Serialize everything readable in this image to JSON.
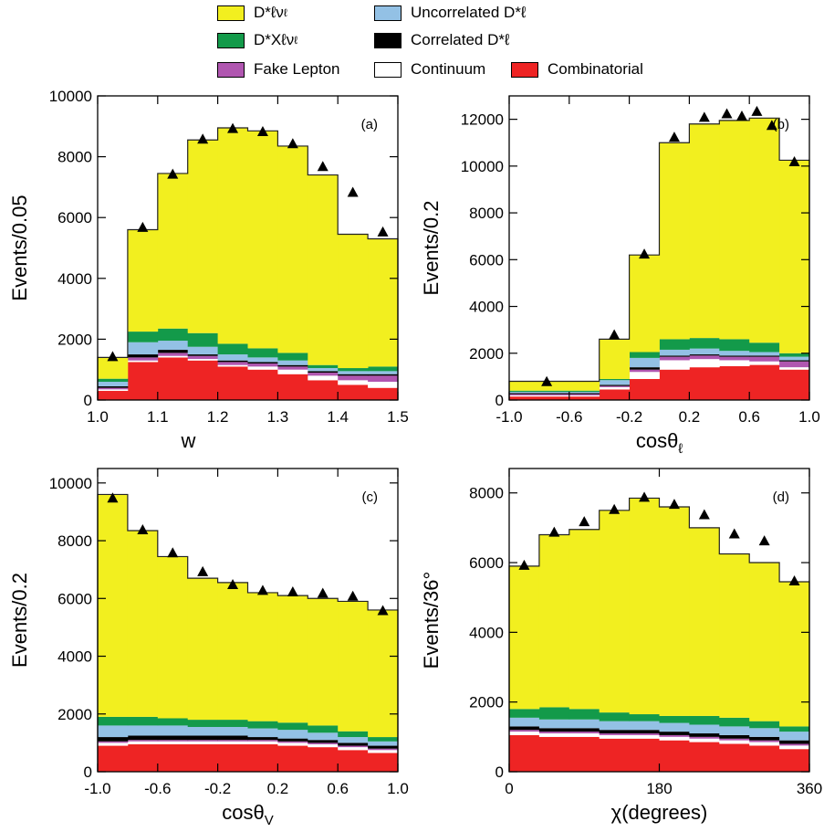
{
  "legend": [
    {
      "label": "D*ℓν",
      "sub": "ℓ",
      "color": "#f2ef1f"
    },
    {
      "label": "Uncorrelated D*ℓ",
      "color": "#93c1e5"
    },
    {
      "label": "D*Xℓν",
      "sub": "ℓ",
      "color": "#139a4a"
    },
    {
      "label": "Correlated D*ℓ",
      "color": "#000000"
    },
    {
      "label": "Fake Lepton",
      "color": "#b056b0"
    },
    {
      "label": "Continuum",
      "color": "#ffffff"
    },
    {
      "label": "Combinatorial",
      "color": "#ee2424"
    }
  ],
  "chart_data": [
    {
      "type": "area",
      "panel": "(a)",
      "xlabel": "w",
      "ylabel": "Events/0.05",
      "xlim": [
        1.0,
        1.5
      ],
      "ylim": [
        0,
        10000
      ],
      "xticks": [
        "1.0",
        "1.1",
        "1.2",
        "1.3",
        "1.4",
        "1.5"
      ],
      "yticks": [
        "0",
        "2000",
        "4000",
        "6000",
        "8000",
        "10000"
      ],
      "bin_edges": [
        1.0,
        1.05,
        1.1,
        1.15,
        1.2,
        1.25,
        1.3,
        1.35,
        1.4,
        1.45,
        1.5
      ],
      "stack": [
        {
          "name": "Combinatorial",
          "values": [
            300,
            1250,
            1400,
            1300,
            1100,
            1000,
            850,
            650,
            500,
            400
          ]
        },
        {
          "name": "Continuum",
          "values": [
            50,
            50,
            50,
            50,
            50,
            100,
            150,
            150,
            150,
            200
          ]
        },
        {
          "name": "Fake Lepton",
          "values": [
            50,
            100,
            100,
            100,
            100,
            100,
            100,
            100,
            150,
            200
          ]
        },
        {
          "name": "Correlated D*ℓ",
          "values": [
            50,
            100,
            100,
            50,
            50,
            50,
            50,
            50,
            50,
            50
          ]
        },
        {
          "name": "Uncorrelated D*ℓ",
          "values": [
            150,
            400,
            300,
            250,
            200,
            150,
            150,
            100,
            100,
            100
          ]
        },
        {
          "name": "D*Xℓνℓ",
          "values": [
            100,
            350,
            400,
            450,
            350,
            300,
            250,
            100,
            100,
            150
          ]
        },
        {
          "name": "D*ℓνℓ",
          "values": [
            700,
            3350,
            5100,
            6350,
            7100,
            7150,
            6800,
            6250,
            4400,
            4200
          ]
        }
      ],
      "points": {
        "x": [
          1.025,
          1.075,
          1.125,
          1.175,
          1.225,
          1.275,
          1.325,
          1.375,
          1.425,
          1.475
        ],
        "y": [
          1400,
          5650,
          7400,
          8550,
          8900,
          8800,
          8400,
          7650,
          6800,
          5500
        ]
      }
    },
    {
      "type": "area",
      "panel": "(b)",
      "xlabel": "cosθ",
      "xsub": "ℓ",
      "ylabel": "Events/0.2",
      "xlim": [
        -1.0,
        1.0
      ],
      "ylim": [
        0,
        13000
      ],
      "xticks": [
        "-1.0",
        "-0.6",
        "-0.2",
        "0.2",
        "0.6",
        "1.0"
      ],
      "yticks": [
        "0",
        "2000",
        "4000",
        "6000",
        "8000",
        "10000",
        "12000"
      ],
      "bin_edges": [
        -1.0,
        -0.6,
        -0.4,
        -0.2,
        0.0,
        0.2,
        0.4,
        0.6,
        0.8,
        1.0
      ],
      "stack": [
        {
          "name": "Combinatorial",
          "values": [
            150,
            150,
            450,
            900,
            1300,
            1400,
            1450,
            1500,
            1300
          ]
        },
        {
          "name": "Continuum",
          "values": [
            50,
            50,
            100,
            300,
            400,
            350,
            250,
            150,
            100
          ]
        },
        {
          "name": "Fake Lepton",
          "values": [
            50,
            50,
            50,
            100,
            150,
            150,
            150,
            200,
            250
          ]
        },
        {
          "name": "Correlated D*ℓ",
          "values": [
            50,
            50,
            50,
            100,
            50,
            50,
            50,
            50,
            50
          ]
        },
        {
          "name": "Uncorrelated D*ℓ",
          "values": [
            50,
            50,
            200,
            400,
            250,
            250,
            200,
            150,
            150
          ]
        },
        {
          "name": "D*Xℓνℓ",
          "values": [
            50,
            50,
            50,
            250,
            450,
            450,
            500,
            400,
            150
          ]
        },
        {
          "name": "D*ℓνℓ",
          "values": [
            400,
            400,
            1700,
            4150,
            8400,
            9150,
            9350,
            9600,
            8250
          ]
        }
      ],
      "points": {
        "x": [
          -0.75,
          -0.3,
          -0.1,
          0.1,
          0.3,
          0.45,
          0.55,
          0.65,
          0.75,
          0.9
        ],
        "y": [
          750,
          2750,
          6200,
          11200,
          12050,
          12200,
          12100,
          12300,
          11700,
          10150
        ]
      }
    },
    {
      "type": "area",
      "panel": "(c)",
      "xlabel": "cosθ",
      "xsub": "V",
      "ylabel": "Events/0.2",
      "xlim": [
        -1.0,
        1.0
      ],
      "ylim": [
        0,
        10500
      ],
      "xticks": [
        "-1.0",
        "-0.6",
        "-0.2",
        "0.2",
        "0.6",
        "1.0"
      ],
      "yticks": [
        "0",
        "2000",
        "4000",
        "6000",
        "8000",
        "10000"
      ],
      "bin_edges": [
        -1.0,
        -0.8,
        -0.6,
        -0.4,
        -0.2,
        0.0,
        0.2,
        0.4,
        0.6,
        0.8,
        1.0
      ],
      "stack": [
        {
          "name": "Combinatorial",
          "values": [
            900,
            950,
            950,
            950,
            950,
            950,
            900,
            850,
            750,
            650
          ]
        },
        {
          "name": "Continuum",
          "values": [
            100,
            100,
            100,
            100,
            100,
            100,
            100,
            100,
            100,
            100
          ]
        },
        {
          "name": "Fake Lepton",
          "values": [
            50,
            50,
            50,
            50,
            50,
            50,
            50,
            50,
            50,
            50
          ]
        },
        {
          "name": "Correlated D*ℓ",
          "values": [
            150,
            150,
            150,
            150,
            150,
            100,
            100,
            100,
            100,
            100
          ]
        },
        {
          "name": "Uncorrelated D*ℓ",
          "values": [
            400,
            350,
            350,
            300,
            300,
            300,
            300,
            250,
            200,
            150
          ]
        },
        {
          "name": "D*Xℓνℓ",
          "values": [
            300,
            300,
            250,
            250,
            250,
            250,
            250,
            250,
            200,
            150
          ]
        },
        {
          "name": "D*ℓνℓ",
          "values": [
            7700,
            6450,
            5600,
            4900,
            4750,
            4450,
            4400,
            4400,
            4500,
            4400
          ]
        }
      ],
      "points": {
        "x": [
          -0.9,
          -0.7,
          -0.5,
          -0.3,
          -0.1,
          0.1,
          0.3,
          0.5,
          0.7,
          0.9
        ],
        "y": [
          9450,
          8350,
          7550,
          6900,
          6450,
          6250,
          6200,
          6150,
          6050,
          5550
        ]
      }
    },
    {
      "type": "area",
      "panel": "(d)",
      "xlabel": "χ(degrees)",
      "ylabel": "Events/36°",
      "xlim": [
        0,
        360
      ],
      "ylim": [
        0,
        8700
      ],
      "xticks": [
        "0",
        "180",
        "360"
      ],
      "yticks": [
        "0",
        "2000",
        "4000",
        "6000",
        "8000"
      ],
      "bin_edges": [
        0,
        36,
        72,
        108,
        144,
        180,
        216,
        252,
        288,
        324,
        360
      ],
      "stack": [
        {
          "name": "Combinatorial",
          "values": [
            1050,
            1000,
            1000,
            950,
            950,
            900,
            850,
            800,
            750,
            650
          ]
        },
        {
          "name": "Continuum",
          "values": [
            100,
            100,
            100,
            100,
            100,
            100,
            100,
            100,
            100,
            100
          ]
        },
        {
          "name": "Fake Lepton",
          "values": [
            50,
            50,
            50,
            50,
            50,
            50,
            50,
            50,
            50,
            50
          ]
        },
        {
          "name": "Correlated D*ℓ",
          "values": [
            100,
            100,
            100,
            100,
            100,
            100,
            100,
            100,
            100,
            100
          ]
        },
        {
          "name": "Uncorrelated D*ℓ",
          "values": [
            250,
            250,
            250,
            250,
            250,
            250,
            250,
            250,
            250,
            250
          ]
        },
        {
          "name": "D*Xℓνℓ",
          "values": [
            250,
            350,
            300,
            250,
            200,
            200,
            250,
            250,
            200,
            150
          ]
        },
        {
          "name": "D*ℓνℓ",
          "values": [
            4100,
            4950,
            5150,
            5800,
            6200,
            6000,
            5400,
            4700,
            4550,
            4150
          ]
        }
      ],
      "points": {
        "x": [
          18,
          54,
          90,
          126,
          162,
          198,
          234,
          270,
          306,
          342
        ],
        "y": [
          5900,
          6850,
          7150,
          7500,
          7850,
          7650,
          7350,
          6800,
          6600,
          5450
        ]
      }
    }
  ]
}
